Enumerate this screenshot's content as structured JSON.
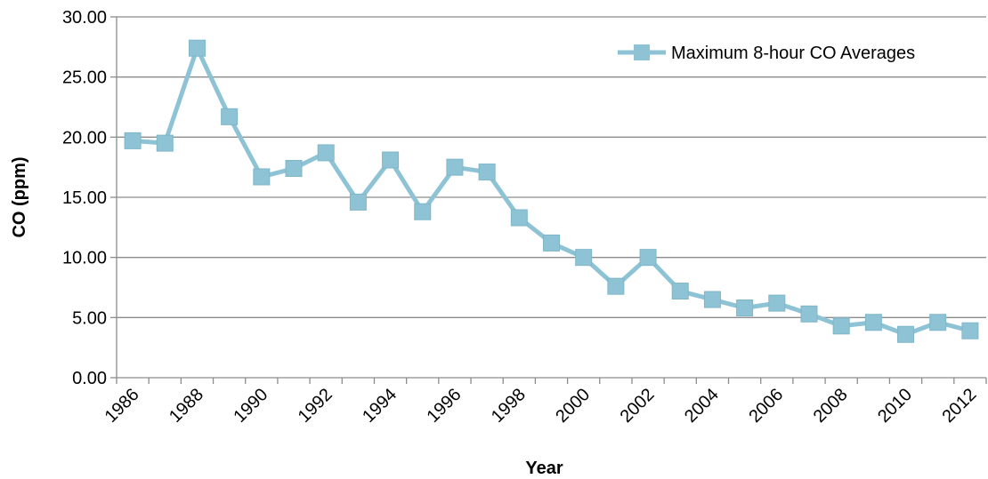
{
  "chart_data": {
    "type": "line",
    "title": "",
    "xlabel": "Year",
    "ylabel": "CO (ppm)",
    "ylim": [
      0,
      30
    ],
    "y_ticks": [
      "0.00",
      "5.00",
      "10.00",
      "15.00",
      "20.00",
      "25.00",
      "30.00"
    ],
    "x_tick_labels": [
      "1986",
      "1988",
      "1990",
      "1992",
      "1994",
      "1996",
      "1998",
      "2000",
      "2002",
      "2004",
      "2006",
      "2008",
      "2010",
      "2012"
    ],
    "grid": "horizontal",
    "legend_position": "top-right",
    "x": [
      1986,
      1987,
      1988,
      1989,
      1990,
      1991,
      1992,
      1993,
      1994,
      1995,
      1996,
      1997,
      1998,
      1999,
      2000,
      2001,
      2002,
      2003,
      2004,
      2005,
      2006,
      2007,
      2008,
      2009,
      2010,
      2011,
      2012
    ],
    "series": [
      {
        "name": "Maximum 8-hour CO Averages",
        "color": "#8DC3D5",
        "marker": "square",
        "values": [
          19.7,
          19.5,
          27.4,
          21.7,
          16.7,
          17.4,
          18.7,
          14.6,
          18.1,
          13.8,
          17.5,
          17.1,
          13.3,
          11.2,
          10.0,
          7.6,
          10.0,
          7.2,
          6.5,
          5.8,
          6.2,
          5.3,
          4.3,
          4.6,
          3.6,
          4.6,
          3.9
        ]
      }
    ]
  }
}
